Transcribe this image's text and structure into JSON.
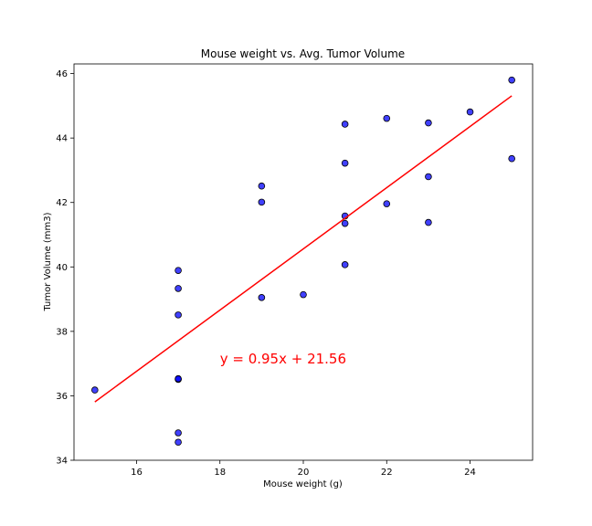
{
  "chart_data": {
    "type": "scatter",
    "title": "Mouse weight vs. Avg. Tumor Volume",
    "xlabel": "Mouse weight (g)",
    "ylabel": "Tumor Volume (mm3)",
    "xlim": [
      14.5,
      25.5
    ],
    "ylim": [
      34,
      46.3
    ],
    "xticks": [
      16,
      18,
      20,
      22,
      24
    ],
    "yticks": [
      34,
      36,
      38,
      40,
      42,
      44,
      46
    ],
    "grid": false,
    "marker_color": "#0000ff",
    "marker_edge_color": "#000000",
    "line_color": "#ff0000",
    "points": [
      {
        "x": 15,
        "y": 36.18
      },
      {
        "x": 17,
        "y": 34.56
      },
      {
        "x": 17,
        "y": 34.85
      },
      {
        "x": 17,
        "y": 36.51
      },
      {
        "x": 17,
        "y": 36.53
      },
      {
        "x": 17,
        "y": 38.51
      },
      {
        "x": 17,
        "y": 39.33
      },
      {
        "x": 17,
        "y": 39.89
      },
      {
        "x": 19,
        "y": 39.05
      },
      {
        "x": 19,
        "y": 42.01
      },
      {
        "x": 19,
        "y": 42.51
      },
      {
        "x": 20,
        "y": 39.14
      },
      {
        "x": 21,
        "y": 40.07
      },
      {
        "x": 21,
        "y": 41.35
      },
      {
        "x": 21,
        "y": 41.58
      },
      {
        "x": 21,
        "y": 43.22
      },
      {
        "x": 21,
        "y": 44.43
      },
      {
        "x": 22,
        "y": 41.96
      },
      {
        "x": 22,
        "y": 44.61
      },
      {
        "x": 23,
        "y": 41.38
      },
      {
        "x": 23,
        "y": 42.8
      },
      {
        "x": 23,
        "y": 44.47
      },
      {
        "x": 24,
        "y": 44.81
      },
      {
        "x": 25,
        "y": 43.36
      },
      {
        "x": 25,
        "y": 45.8
      }
    ],
    "regression": {
      "slope": 0.95,
      "intercept": 21.56,
      "x_range": [
        15,
        25
      ],
      "equation_text": "y = 0.95x + 21.56",
      "equation_anchor": {
        "x": 18,
        "y": 37
      }
    }
  }
}
